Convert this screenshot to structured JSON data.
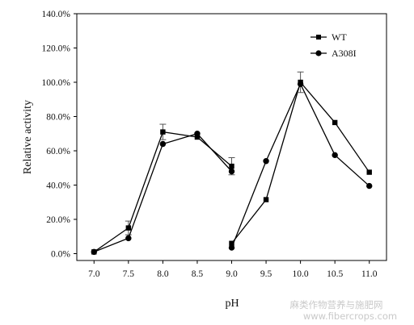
{
  "chart_data": {
    "type": "line",
    "title": "",
    "xlabel": "pH",
    "ylabel": "Relative activity",
    "x_ticks": [
      "7.0",
      "7.5",
      "8.0",
      "8.5",
      "9.0",
      "9.5",
      "10.0",
      "10.5",
      "11.0"
    ],
    "y_ticks": [
      "0.0%",
      "20.0%",
      "40.0%",
      "60.0%",
      "80.0%",
      "100.0%",
      "120.0%",
      "140.0%"
    ],
    "xlim": [
      6.75,
      11.25
    ],
    "ylim": [
      -4,
      140
    ],
    "grid": false,
    "legend_position": "top-right",
    "series": [
      {
        "name": "WT",
        "marker": "square",
        "color": "#000000",
        "segments": [
          [
            [
              7.0,
              1.0
            ],
            [
              7.5,
              15.0
            ],
            [
              8.0,
              71.0
            ],
            [
              8.5,
              68.0
            ],
            [
              9.0,
              51.0
            ]
          ],
          [
            [
              9.0,
              6.0
            ],
            [
              9.5,
              31.5
            ],
            [
              10.0,
              100.0
            ],
            [
              10.5,
              76.5
            ],
            [
              11.0,
              47.5
            ]
          ]
        ],
        "errors": [
          [
            7.5,
            4.0
          ],
          [
            8.0,
            4.5
          ],
          [
            9.0,
            5.0
          ],
          [
            10.0,
            6.0
          ]
        ]
      },
      {
        "name": "A308I",
        "marker": "circle",
        "color": "#000000",
        "segments": [
          [
            [
              7.0,
              1.0
            ],
            [
              7.5,
              9.0
            ],
            [
              8.0,
              64.0
            ],
            [
              8.5,
              70.0
            ],
            [
              9.0,
              48.0
            ]
          ],
          [
            [
              9.0,
              3.5
            ],
            [
              9.5,
              54.0
            ],
            [
              10.0,
              99.0
            ],
            [
              10.5,
              57.5
            ],
            [
              11.0,
              39.5
            ]
          ]
        ],
        "errors": []
      }
    ]
  },
  "watermark": {
    "line1": "麻类作物营养与施肥网",
    "line2": "www.fibercrops.com"
  }
}
